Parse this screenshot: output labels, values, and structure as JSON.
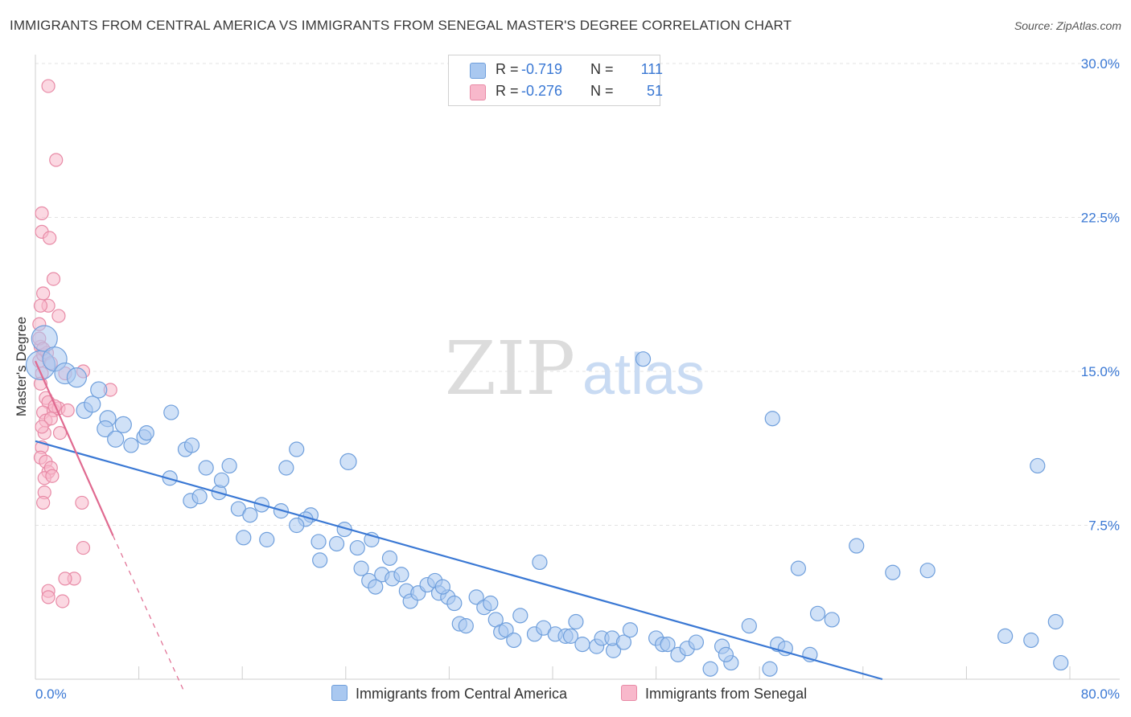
{
  "title": "IMMIGRANTS FROM CENTRAL AMERICA VS IMMIGRANTS FROM SENEGAL MASTER'S DEGREE CORRELATION CHART",
  "source": "Source: ZipAtlas.com",
  "watermark": {
    "zip": "ZIP",
    "atlas": "atlas"
  },
  "legend": {
    "r_label": "R =",
    "n_label": "N =",
    "rows": [
      {
        "r": "-0.719",
        "n": "111",
        "color": "#a9c8f0",
        "border": "#6f9fdc"
      },
      {
        "r": "-0.276",
        "n": "51",
        "color": "#f8b8cb",
        "border": "#e88aa6"
      }
    ]
  },
  "bottom_legend": [
    {
      "label": "Immigrants from Central America",
      "color": "#a9c8f0",
      "border": "#6f9fdc"
    },
    {
      "label": "Immigrants from Senegal",
      "color": "#f8b8cb",
      "border": "#e88aa6"
    }
  ],
  "chart_data": {
    "type": "scatter",
    "title": "IMMIGRANTS FROM CENTRAL AMERICA VS IMMIGRANTS FROM SENEGAL MASTER'S DEGREE CORRELATION CHART",
    "xlabel": "",
    "ylabel": "Master's Degree",
    "xlim": [
      0,
      80
    ],
    "ylim": [
      0,
      30
    ],
    "x_tick_labels": [
      "0.0%",
      "80.0%"
    ],
    "y_ticks": [
      7.5,
      15.0,
      22.5,
      30.0
    ],
    "y_tick_labels": [
      "7.5%",
      "15.0%",
      "22.5%",
      "30.0%"
    ],
    "grid": "horizontal dashed",
    "legend_position": "top-center",
    "series": [
      {
        "name": "Immigrants from Central America",
        "color": "#a9c8f0",
        "stroke": "#6f9fdc",
        "trend": {
          "x0": 0,
          "y0": 11.6,
          "x1": 65.5,
          "y1": 0.0,
          "color": "#3a78d4"
        },
        "points": [
          [
            0.4,
            15.3,
            18
          ],
          [
            0.7,
            16.6,
            16
          ],
          [
            1.5,
            15.6,
            15
          ],
          [
            2.3,
            14.9,
            13
          ],
          [
            3.2,
            14.7,
            12
          ],
          [
            4.9,
            14.1,
            10
          ],
          [
            3.8,
            13.1,
            10
          ],
          [
            4.4,
            13.4,
            10
          ],
          [
            5.6,
            12.7,
            10
          ],
          [
            5.4,
            12.2,
            10
          ],
          [
            6.8,
            12.4,
            10
          ],
          [
            6.2,
            11.7,
            10
          ],
          [
            7.4,
            11.4,
            9
          ],
          [
            8.4,
            11.8,
            9
          ],
          [
            8.6,
            12.0,
            9
          ],
          [
            10.5,
            13.0,
            9
          ],
          [
            10.4,
            9.8,
            9
          ],
          [
            11.6,
            11.2,
            9
          ],
          [
            12.1,
            11.4,
            9
          ],
          [
            12.0,
            8.7,
            9
          ],
          [
            13.2,
            10.3,
            9
          ],
          [
            12.7,
            8.9,
            9
          ],
          [
            14.2,
            9.1,
            9
          ],
          [
            15.0,
            10.4,
            9
          ],
          [
            14.4,
            9.7,
            9
          ],
          [
            15.7,
            8.3,
            9
          ],
          [
            16.6,
            8.0,
            9
          ],
          [
            17.5,
            8.5,
            9
          ],
          [
            16.1,
            6.9,
            9
          ],
          [
            17.9,
            6.8,
            9
          ],
          [
            19.4,
            10.3,
            9
          ],
          [
            19.0,
            8.2,
            9
          ],
          [
            20.2,
            11.2,
            9
          ],
          [
            21.3,
            8.0,
            9
          ],
          [
            20.9,
            7.8,
            9
          ],
          [
            21.9,
            6.7,
            9
          ],
          [
            20.2,
            7.5,
            9
          ],
          [
            22.0,
            5.8,
            9
          ],
          [
            23.3,
            6.6,
            9
          ],
          [
            24.2,
            10.6,
            10
          ],
          [
            23.9,
            7.3,
            9
          ],
          [
            24.9,
            6.4,
            9
          ],
          [
            25.2,
            5.4,
            9
          ],
          [
            26.0,
            6.8,
            9
          ],
          [
            25.8,
            4.8,
            9
          ],
          [
            26.8,
            5.1,
            9
          ],
          [
            26.3,
            4.5,
            9
          ],
          [
            27.4,
            5.9,
            9
          ],
          [
            27.6,
            4.9,
            9
          ],
          [
            28.3,
            5.1,
            9
          ],
          [
            28.7,
            4.3,
            9
          ],
          [
            29.0,
            3.8,
            9
          ],
          [
            29.6,
            4.2,
            9
          ],
          [
            30.3,
            4.6,
            9
          ],
          [
            30.9,
            4.8,
            9
          ],
          [
            31.2,
            4.2,
            9
          ],
          [
            31.9,
            4.0,
            9
          ],
          [
            32.4,
            3.7,
            9
          ],
          [
            32.8,
            2.7,
            9
          ],
          [
            33.3,
            2.6,
            9
          ],
          [
            34.1,
            4.0,
            9
          ],
          [
            34.7,
            3.5,
            9
          ],
          [
            35.2,
            3.7,
            9
          ],
          [
            35.6,
            2.9,
            9
          ],
          [
            36.0,
            2.3,
            9
          ],
          [
            36.4,
            2.4,
            9
          ],
          [
            37.0,
            1.9,
            9
          ],
          [
            38.6,
            2.2,
            9
          ],
          [
            39.3,
            2.5,
            9
          ],
          [
            40.2,
            2.2,
            9
          ],
          [
            41.0,
            2.1,
            9
          ],
          [
            41.4,
            2.1,
            9
          ],
          [
            41.8,
            2.8,
            9
          ],
          [
            42.3,
            1.7,
            9
          ],
          [
            43.4,
            1.6,
            9
          ],
          [
            43.8,
            2.0,
            9
          ],
          [
            44.7,
            1.4,
            9
          ],
          [
            44.6,
            2.0,
            9
          ],
          [
            45.5,
            1.8,
            9
          ],
          [
            46.0,
            2.4,
            9
          ],
          [
            48.0,
            2.0,
            9
          ],
          [
            48.5,
            1.7,
            9
          ],
          [
            48.9,
            1.7,
            9
          ],
          [
            49.7,
            1.2,
            9
          ],
          [
            50.4,
            1.5,
            9
          ],
          [
            51.1,
            1.8,
            9
          ],
          [
            52.2,
            0.5,
            9
          ],
          [
            53.1,
            1.6,
            9
          ],
          [
            53.8,
            0.8,
            9
          ],
          [
            53.4,
            1.2,
            9
          ],
          [
            55.2,
            2.6,
            9
          ],
          [
            56.8,
            0.5,
            9
          ],
          [
            57.4,
            1.7,
            9
          ],
          [
            58.0,
            1.5,
            9
          ],
          [
            59.9,
            1.2,
            9
          ],
          [
            60.5,
            3.2,
            9
          ],
          [
            61.6,
            2.9,
            9
          ],
          [
            66.3,
            5.2,
            9
          ],
          [
            69.0,
            5.3,
            9
          ],
          [
            75.0,
            2.1,
            9
          ],
          [
            77.0,
            1.9,
            9
          ],
          [
            78.9,
            2.8,
            9
          ],
          [
            79.3,
            0.8,
            9
          ],
          [
            31.5,
            4.5,
            9
          ],
          [
            37.5,
            3.1,
            9
          ],
          [
            39.0,
            5.7,
            9
          ],
          [
            47.0,
            15.6,
            9
          ],
          [
            57.0,
            12.7,
            9
          ],
          [
            63.5,
            6.5,
            9
          ],
          [
            59.0,
            5.4,
            9
          ],
          [
            77.5,
            10.4,
            9
          ]
        ]
      },
      {
        "name": "Immigrants from Senegal",
        "color": "#f8b8cb",
        "stroke": "#e88aa6",
        "trend": {
          "x0": 0,
          "y0": 15.5,
          "x1": 6.0,
          "y1": 7.0,
          "dash_to_x": 11.5,
          "dash_to_y": -0.6,
          "color": "#e06a90"
        },
        "points": [
          [
            1.0,
            28.9,
            8
          ],
          [
            1.6,
            25.3,
            8
          ],
          [
            0.5,
            22.7,
            8
          ],
          [
            0.5,
            21.8,
            8
          ],
          [
            1.1,
            21.5,
            8
          ],
          [
            1.4,
            19.5,
            8
          ],
          [
            0.6,
            18.8,
            8
          ],
          [
            1.0,
            18.2,
            8
          ],
          [
            0.4,
            18.2,
            8
          ],
          [
            1.8,
            17.7,
            8
          ],
          [
            0.3,
            17.3,
            8
          ],
          [
            0.4,
            16.2,
            8
          ],
          [
            0.3,
            15.5,
            8
          ],
          [
            0.6,
            15.8,
            8
          ],
          [
            0.5,
            14.9,
            8
          ],
          [
            0.4,
            14.4,
            8
          ],
          [
            0.8,
            13.7,
            8
          ],
          [
            1.0,
            13.5,
            8
          ],
          [
            0.6,
            13.0,
            8
          ],
          [
            1.4,
            13.1,
            8
          ],
          [
            1.8,
            13.2,
            8
          ],
          [
            2.5,
            13.1,
            8
          ],
          [
            0.8,
            12.6,
            8
          ],
          [
            1.2,
            12.7,
            8
          ],
          [
            0.7,
            12.0,
            8
          ],
          [
            1.9,
            12.0,
            8
          ],
          [
            0.5,
            11.3,
            8
          ],
          [
            0.4,
            10.8,
            8
          ],
          [
            0.8,
            10.6,
            8
          ],
          [
            1.0,
            10.1,
            8
          ],
          [
            1.2,
            10.3,
            8
          ],
          [
            0.7,
            9.8,
            8
          ],
          [
            1.3,
            9.9,
            8
          ],
          [
            0.7,
            9.1,
            8
          ],
          [
            0.6,
            8.6,
            8
          ],
          [
            3.6,
            8.6,
            8
          ],
          [
            3.7,
            6.4,
            8
          ],
          [
            3.0,
            4.9,
            8
          ],
          [
            2.3,
            4.9,
            8
          ],
          [
            1.0,
            4.3,
            8
          ],
          [
            1.0,
            4.0,
            8
          ],
          [
            2.1,
            3.8,
            8
          ],
          [
            3.7,
            15.0,
            8
          ],
          [
            5.8,
            14.1,
            8
          ],
          [
            0.9,
            15.9,
            8
          ],
          [
            1.2,
            15.4,
            8
          ],
          [
            0.3,
            16.6,
            8
          ],
          [
            0.6,
            16.1,
            8
          ],
          [
            2.3,
            14.9,
            8
          ],
          [
            0.5,
            12.3,
            8
          ],
          [
            1.5,
            13.3,
            8
          ]
        ]
      }
    ]
  }
}
